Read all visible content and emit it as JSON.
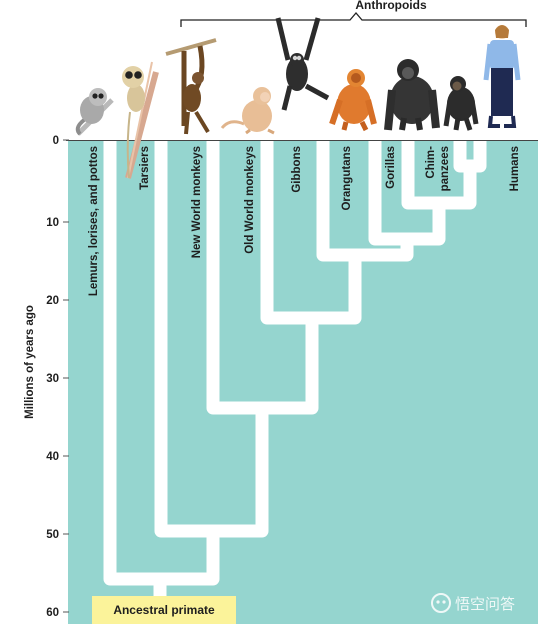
{
  "diagram": {
    "bracket_label": "Anthropoids",
    "y_axis_label": "Millions of years ago",
    "y_ticks": [
      "0",
      "10",
      "20",
      "30",
      "40",
      "50",
      "60"
    ],
    "root_label": "Ancestral primate",
    "taxa": [
      "Lemurs, lorises, and pottos",
      "Tarsiers",
      "New World monkeys",
      "Old World monkeys",
      "Gibbons",
      "Orangutans",
      "Gorillas",
      "Chim-",
      "panzees",
      "Humans"
    ],
    "watermark": "悟空问答",
    "colors": {
      "background": "#95d5cf",
      "branch": "#ffffff",
      "root_box": "#fbf39a",
      "text": "#1e1e1e"
    },
    "icons": [
      "lemur-illustration",
      "tarsier-illustration",
      "spider-monkey-illustration",
      "macaque-illustration",
      "gibbon-illustration",
      "orangutan-illustration",
      "gorilla-illustration",
      "chimpanzee-illustration",
      "human-illustration"
    ]
  }
}
